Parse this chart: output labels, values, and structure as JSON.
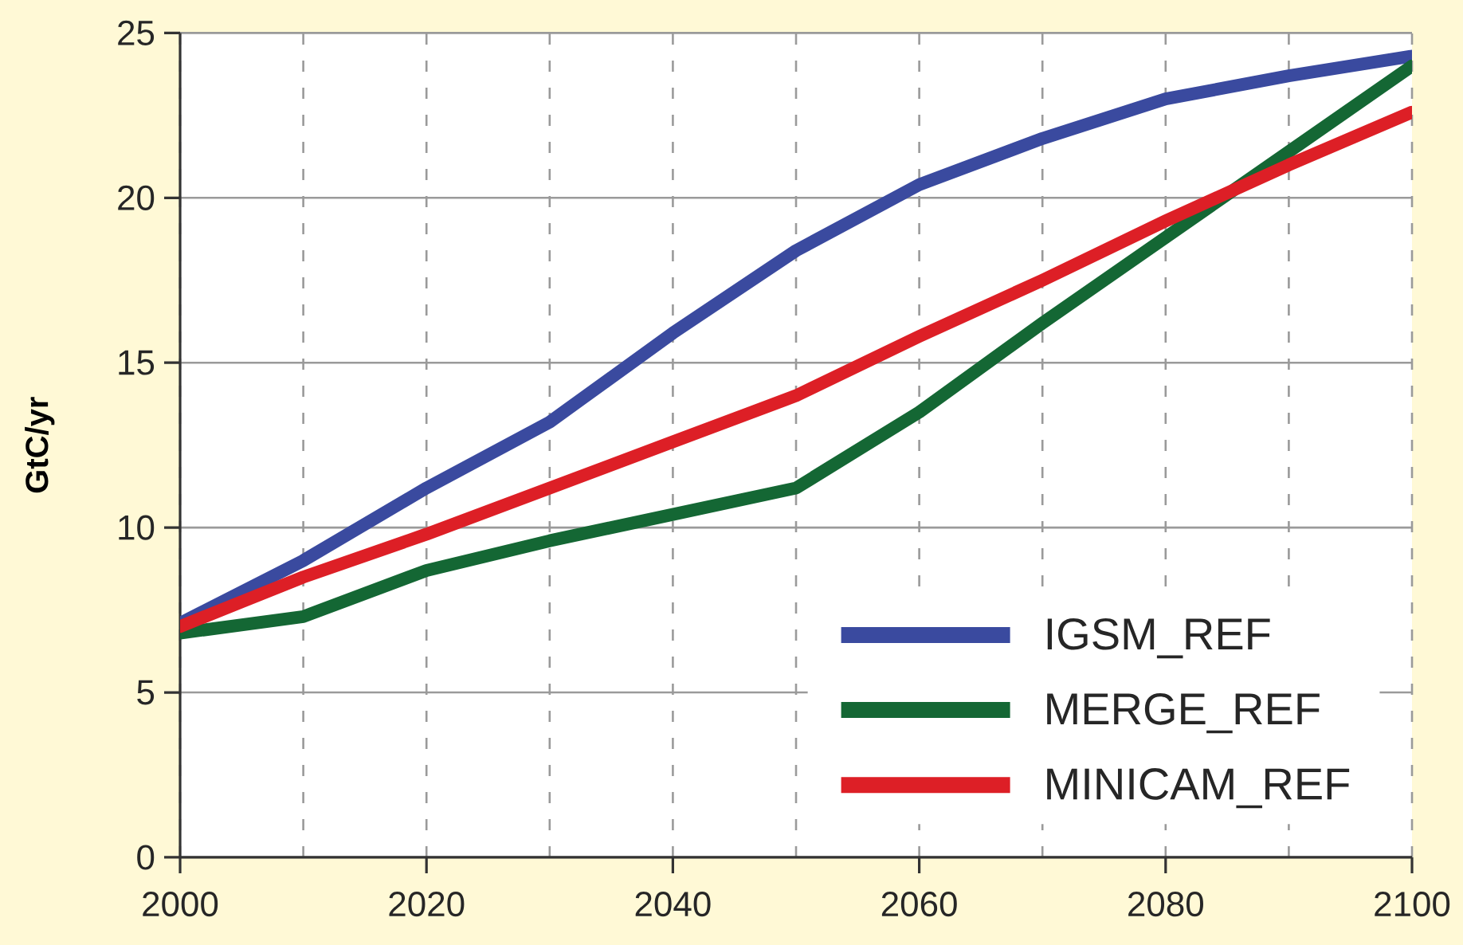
{
  "chart_data": {
    "type": "line",
    "ylabel": "GtC/yr",
    "x": [
      2000,
      2010,
      2020,
      2030,
      2040,
      2050,
      2060,
      2070,
      2080,
      2090,
      2100
    ],
    "series": [
      {
        "name": "IGSM_REF",
        "color": "#3a4a9f",
        "values": [
          7.1,
          9.0,
          11.2,
          13.2,
          15.9,
          18.4,
          20.4,
          21.8,
          23.0,
          23.7,
          24.3
        ]
      },
      {
        "name": "MERGE_REF",
        "color": "#146734",
        "values": [
          6.8,
          7.3,
          8.7,
          9.6,
          10.4,
          11.2,
          13.5,
          16.2,
          18.8,
          21.4,
          24.0
        ]
      },
      {
        "name": "MINICAM_REF",
        "color": "#dd1f26",
        "values": [
          7.0,
          8.5,
          9.8,
          11.2,
          12.6,
          14.0,
          15.8,
          17.5,
          19.3,
          21.0,
          22.6
        ]
      }
    ],
    "xlim": [
      2000,
      2100
    ],
    "xticks": [
      2000,
      {
        "value": 2010,
        "label": null
      },
      2020,
      {
        "value": 2030,
        "label": null
      },
      2040,
      {
        "value": 2050,
        "label": null
      },
      2060,
      {
        "value": 2070,
        "label": null
      },
      2080,
      {
        "value": 2090,
        "label": null
      },
      2100
    ],
    "ylim": [
      0,
      25
    ],
    "yticks": [
      0,
      5,
      10,
      15,
      20,
      25
    ],
    "grid": true,
    "legend": "bottom right",
    "line_style": "solid"
  }
}
